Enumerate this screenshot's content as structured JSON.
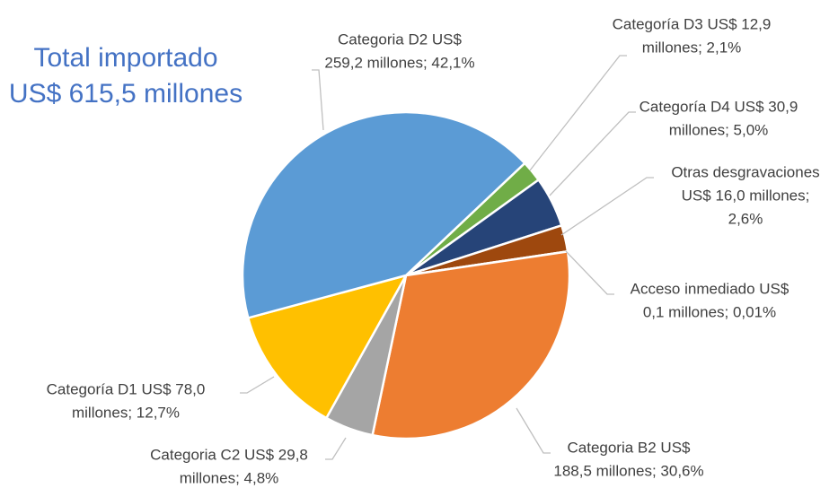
{
  "chart_data": {
    "type": "pie",
    "title": [
      "Total importado",
      "US$ 615,5 millones"
    ],
    "values": [
      2.1,
      5.0,
      2.6,
      0.01,
      30.6,
      4.8,
      12.7,
      42.1
    ],
    "value_labels": [
      [
        "Categoría D3 US$ 12,9",
        "millones; 2,1%"
      ],
      [
        "Categoría D4 US$ 30,9",
        "millones; 5,0%"
      ],
      [
        "Otras desgravaciones",
        "US$ 16,0 millones;",
        "2,6%"
      ],
      [
        "Acceso inmediado US$",
        "0,1 millones; 0,01%"
      ],
      [
        "Categoria B2 US$",
        "188,5 millones; 30,6%"
      ],
      [
        "Categoria C2 US$ 29,8",
        "millones; 4,8%"
      ],
      [
        "Categoría D1 US$ 78,0",
        "millones; 12,7%"
      ],
      [
        "Categoria D2 US$",
        "259,2 millones; 42,1%"
      ]
    ],
    "colors": [
      "#70ad47",
      "#264478",
      "#9e480e",
      "#636363",
      "#ed7d31",
      "#a5a5a5",
      "#ffc000",
      "#5b9bd5"
    ]
  }
}
